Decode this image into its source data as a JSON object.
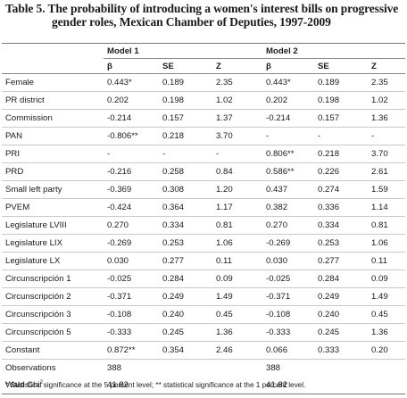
{
  "title": {
    "label": "Table 5.",
    "text_line1": "The probability of introducing a women's interest bills on progressive",
    "text_line2": "gender roles, Mexican Chamber of Deputies, 1997-2009"
  },
  "models": [
    "Model 1",
    "Model 2"
  ],
  "columns": [
    "β",
    "SE",
    "Z",
    "β",
    "SE",
    "Z"
  ],
  "rows": [
    {
      "label": "Female",
      "cells": [
        "0.443*",
        "0.189",
        "2.35",
        "0.443*",
        "0.189",
        "2.35"
      ]
    },
    {
      "label": "PR district",
      "cells": [
        "0.202",
        "0.198",
        "1.02",
        "0.202",
        "0.198",
        "1.02"
      ]
    },
    {
      "label": "Commission",
      "cells": [
        "-0.214",
        "0.157",
        "1.37",
        "-0.214",
        "0.157",
        "1.36"
      ]
    },
    {
      "label": "PAN",
      "cells": [
        "-0.806**",
        "0.218",
        "3.70",
        "-",
        "-",
        "-"
      ]
    },
    {
      "label": "PRI",
      "cells": [
        "-",
        "-",
        "-",
        "0.806**",
        "0.218",
        "3.70"
      ]
    },
    {
      "label": "PRD",
      "cells": [
        "-0.216",
        "0.258",
        "0.84",
        "0.586**",
        "0.226",
        "2.61"
      ]
    },
    {
      "label": "Small left party",
      "cells": [
        "-0.369",
        "0.308",
        "1.20",
        "0.437",
        "0.274",
        "1.59"
      ]
    },
    {
      "label": "PVEM",
      "cells": [
        "-0.424",
        "0.364",
        "1.17",
        "0.382",
        "0.336",
        "1.14"
      ]
    },
    {
      "label": "Legislature LVIII",
      "cells": [
        "0.270",
        "0.334",
        "0.81",
        "0.270",
        "0.334",
        "0.81"
      ]
    },
    {
      "label": "Legislature LIX",
      "cells": [
        "-0.269",
        "0.253",
        "1.06",
        "-0.269",
        "0.253",
        "1.06"
      ]
    },
    {
      "label": "Legislature LX",
      "cells": [
        "0.030",
        "0.277",
        "0.11",
        "0.030",
        "0.277",
        "0.11"
      ]
    },
    {
      "label": "Circunscripción 1",
      "cells": [
        "-0.025",
        "0.284",
        "0.09",
        "-0.025",
        "0.284",
        "0.09"
      ]
    },
    {
      "label": "Circunscripción 2",
      "cells": [
        "-0.371",
        "0.249",
        "1.49",
        "-0.371",
        "0.249",
        "1.49"
      ]
    },
    {
      "label": "Circunscripción 3",
      "cells": [
        "-0.108",
        "0.240",
        "0.45",
        "-0.108",
        "0.240",
        "0.45"
      ]
    },
    {
      "label": "Circunscripción 5",
      "cells": [
        "-0.333",
        "0.245",
        "1.36",
        "-0.333",
        "0.245",
        "1.36"
      ]
    },
    {
      "label": "Constant",
      "cells": [
        "0.872**",
        "0.354",
        "2.46",
        "0.066",
        "0.333",
        "0.20"
      ]
    }
  ],
  "observations": {
    "label": "Observations",
    "model1": "388",
    "model2": "388"
  },
  "wald": {
    "label": "Wald Chi",
    "sup": "2",
    "model1": "41.82",
    "model2": "41.82"
  },
  "footnote": "* Statistical significance at the 5 percent level; ** statistical significance at the 1 percent level."
}
